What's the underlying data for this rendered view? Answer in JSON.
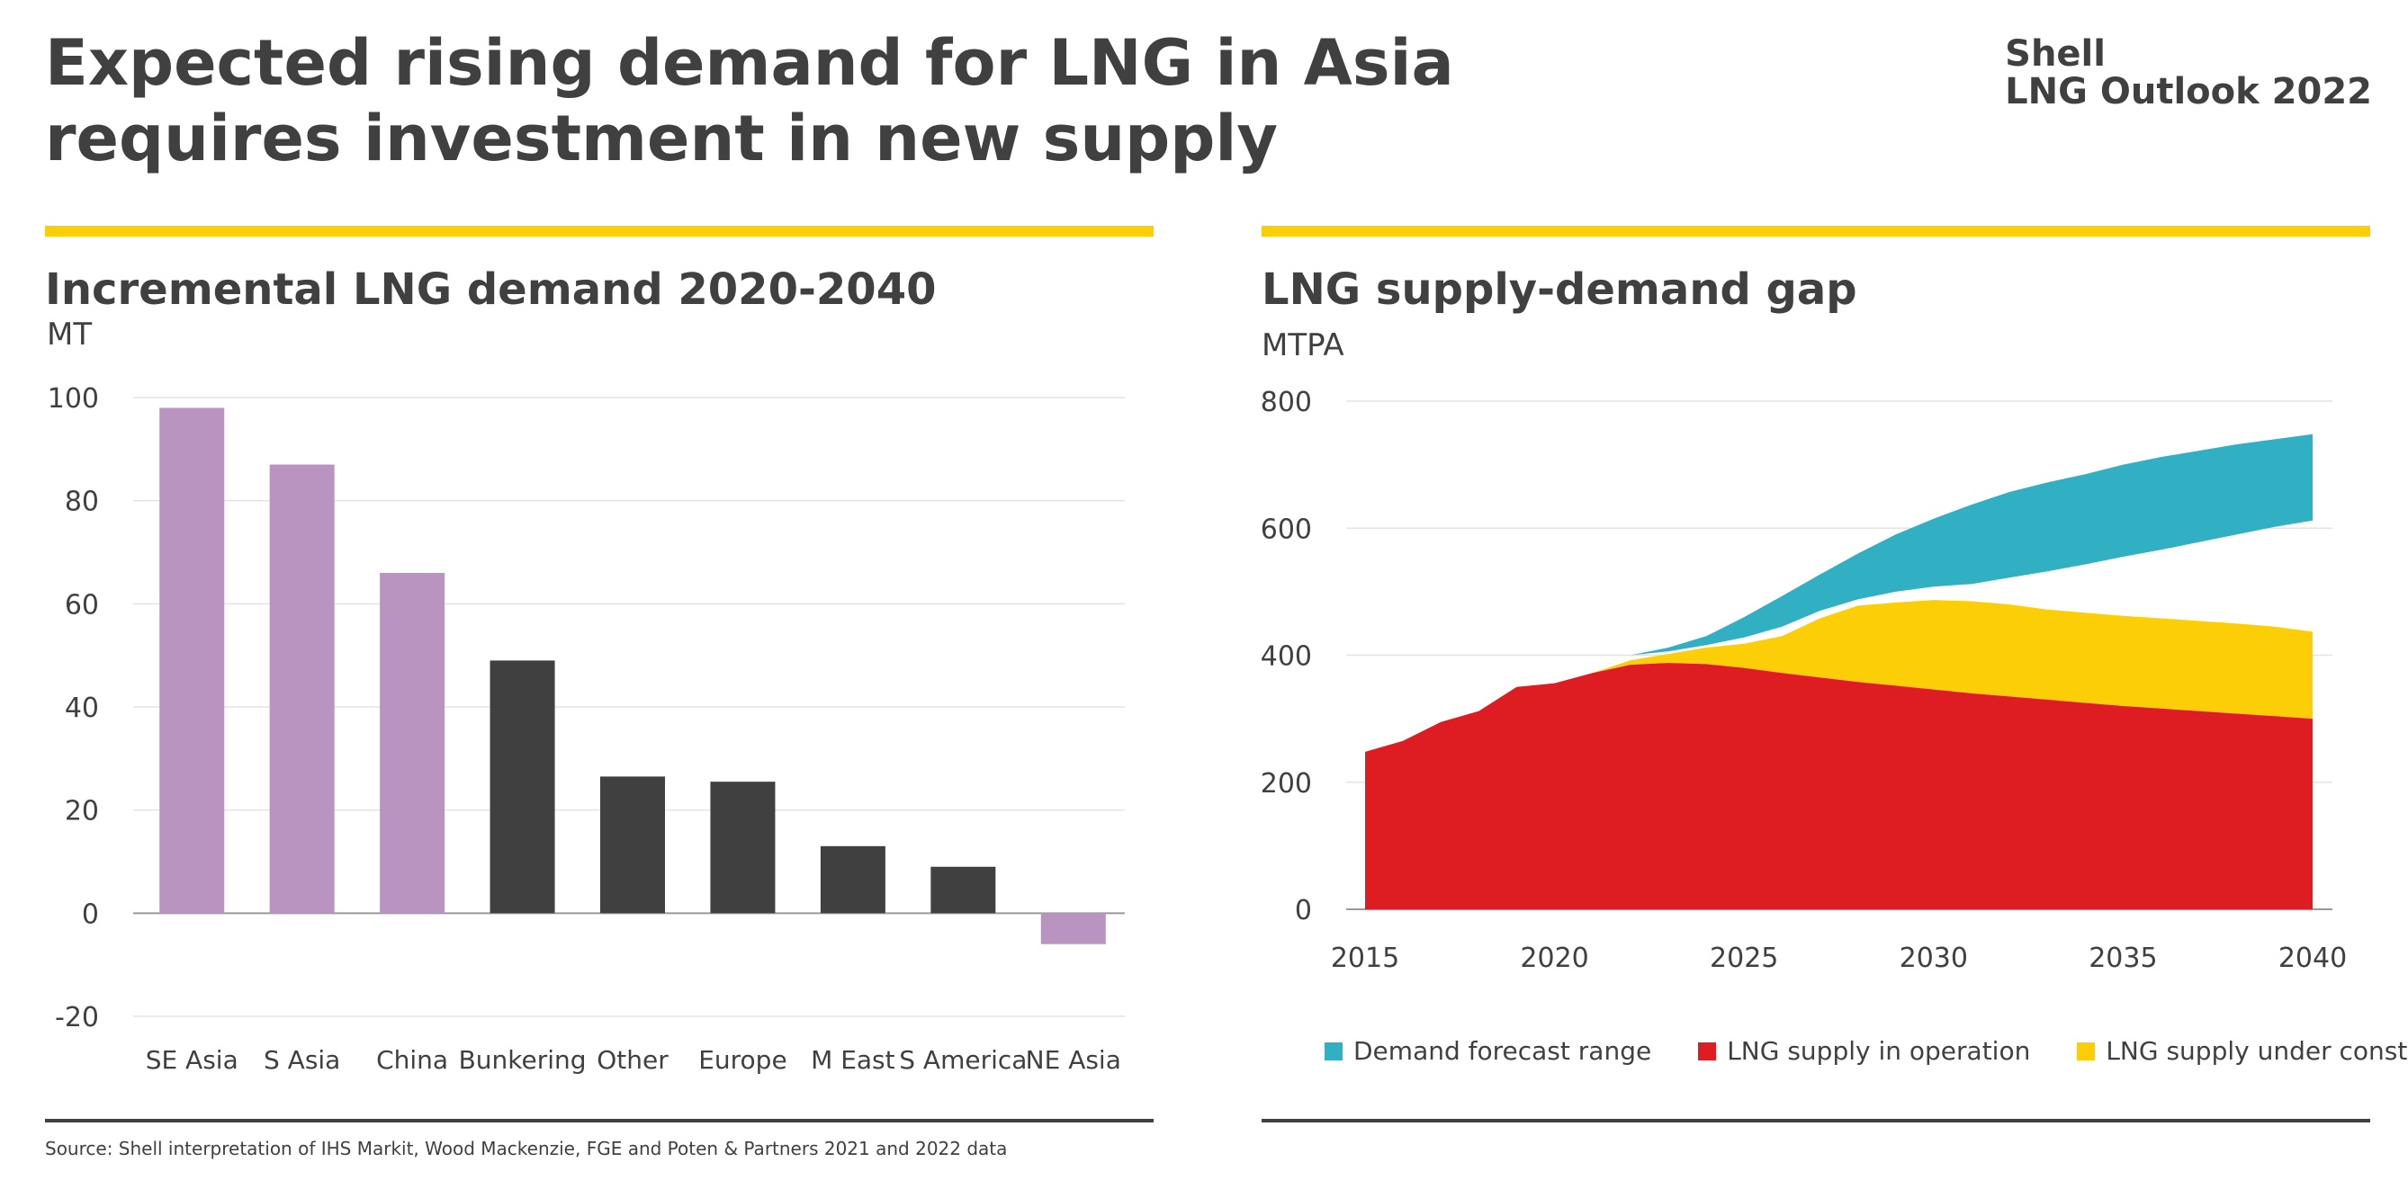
{
  "header": {
    "title": "Expected rising demand for LNG in Asia requires investment in new supply",
    "brand_line1": "Shell",
    "brand_line2": "LNG Outlook 2022"
  },
  "footer": {
    "source": "Source: Shell interpretation of IHS Markit, Wood Mackenzie, FGE and Poten & Partners 2021 and 2022 data"
  },
  "colors": {
    "accent_yellow": "#fbce07",
    "asia_purple": "#b994c0",
    "other_dark": "#404040",
    "demand_teal": "#31b0c3",
    "supply_red": "#dd1d21",
    "construction_yellow": "#fbce07"
  },
  "chart_data": [
    {
      "type": "bar",
      "title": "Incremental LNG demand 2020-2040",
      "ylabel": "MT",
      "xlabel": "",
      "categories": [
        "SE Asia",
        "S Asia",
        "China",
        "Bunkering",
        "Other",
        "Europe",
        "M East",
        "S America",
        "NE Asia"
      ],
      "values": [
        98,
        87,
        66,
        49,
        26.5,
        25.5,
        13,
        9,
        -6
      ],
      "bar_colors": [
        "#b994c0",
        "#b994c0",
        "#b994c0",
        "#404040",
        "#404040",
        "#404040",
        "#404040",
        "#404040",
        "#b994c0"
      ],
      "ylim": [
        -20,
        100
      ],
      "yticks": [
        100,
        80,
        60,
        40,
        20,
        0,
        -20
      ],
      "grid": true
    },
    {
      "type": "area",
      "title": "LNG supply-demand gap",
      "ylabel": "MTPA",
      "xlabel": "",
      "x": [
        2015,
        2016,
        2017,
        2018,
        2019,
        2020,
        2021,
        2022,
        2023,
        2024,
        2025,
        2026,
        2027,
        2028,
        2029,
        2030,
        2031,
        2032,
        2033,
        2034,
        2035,
        2036,
        2037,
        2038,
        2039,
        2040
      ],
      "xticks": [
        2015,
        2020,
        2025,
        2030,
        2035,
        2040
      ],
      "ylim": [
        0,
        800
      ],
      "yticks": [
        800,
        600,
        400,
        200,
        0
      ],
      "grid": true,
      "legend_position": "bottom",
      "series": [
        {
          "name": "LNG supply in operation",
          "color": "#dd1d21",
          "values": [
            248,
            265,
            295,
            312,
            350,
            356,
            372,
            385,
            388,
            386,
            380,
            372,
            365,
            358,
            352,
            346,
            340,
            335,
            330,
            325,
            320,
            316,
            312,
            308,
            304,
            300
          ]
        },
        {
          "name": "LNG supply under construction",
          "color": "#fbce07",
          "values": [
            248,
            265,
            295,
            312,
            350,
            356,
            372,
            392,
            402,
            412,
            418,
            430,
            458,
            478,
            483,
            487,
            485,
            480,
            472,
            467,
            462,
            458,
            454,
            450,
            445,
            437
          ]
        },
        {
          "name": "Demand forecast range",
          "color": "#31b0c3",
          "low": [
            248,
            265,
            295,
            312,
            350,
            356,
            372,
            400,
            406,
            416,
            428,
            445,
            470,
            488,
            500,
            508,
            512,
            522,
            532,
            543,
            555,
            566,
            578,
            590,
            602,
            612
          ],
          "high": [
            248,
            265,
            295,
            312,
            350,
            356,
            372,
            400,
            412,
            430,
            460,
            493,
            527,
            560,
            590,
            615,
            637,
            657,
            672,
            685,
            700,
            712,
            722,
            732,
            740,
            748
          ]
        }
      ],
      "legend": [
        {
          "label": "Demand forecast range",
          "color": "#31b0c3"
        },
        {
          "label": "LNG supply in operation",
          "color": "#dd1d21"
        },
        {
          "label": "LNG supply under construction",
          "color": "#fbce07"
        }
      ]
    }
  ]
}
